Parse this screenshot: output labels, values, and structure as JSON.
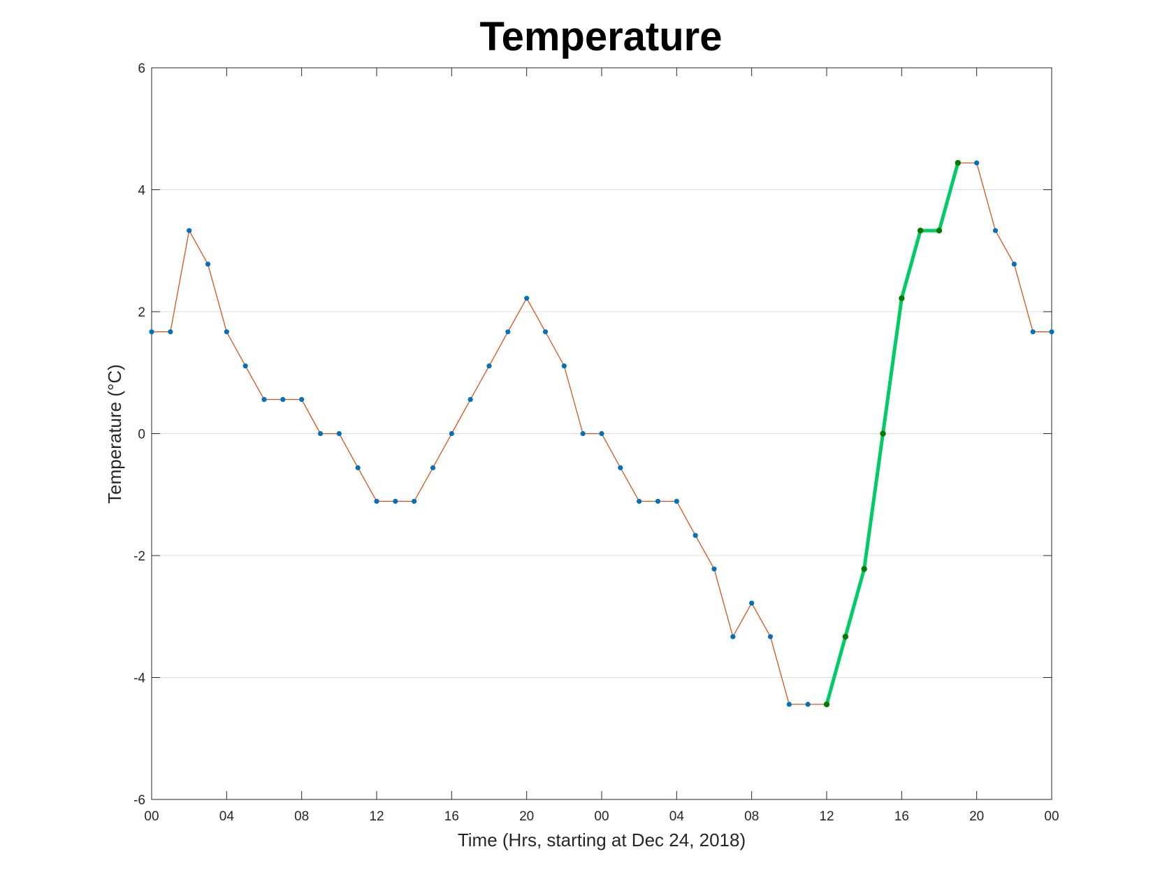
{
  "chart_data": {
    "type": "line",
    "title": "Temperature",
    "xlabel": "Time (Hrs, starting at Dec 24, 2018)",
    "ylabel": "Temperature (°C)",
    "ylim": [
      -6,
      6
    ],
    "yticks": [
      -6,
      -4,
      -2,
      0,
      2,
      4,
      6
    ],
    "xlim": [
      "2018-12-24 00:00",
      "2018-12-26 00:00"
    ],
    "xticks": [
      {
        "time": "2018-12-24 00:00",
        "label": "00"
      },
      {
        "time": "2018-12-24 04:00",
        "label": "04"
      },
      {
        "time": "2018-12-24 08:00",
        "label": "08"
      },
      {
        "time": "2018-12-24 12:00",
        "label": "12"
      },
      {
        "time": "2018-12-24 16:00",
        "label": "16"
      },
      {
        "time": "2018-12-24 20:00",
        "label": "20"
      },
      {
        "time": "2018-12-25 00:00",
        "label": "00"
      },
      {
        "time": "2018-12-25 04:00",
        "label": "04"
      },
      {
        "time": "2018-12-25 08:00",
        "label": "08"
      },
      {
        "time": "2018-12-25 12:00",
        "label": "12"
      },
      {
        "time": "2018-12-25 16:00",
        "label": "16"
      },
      {
        "time": "2018-12-25 20:00",
        "label": "20"
      },
      {
        "time": "2018-12-26 00:00",
        "label": "00"
      }
    ],
    "grid": "horizontal",
    "series": [
      {
        "color": "#d95319",
        "marker_color": "#0072bd",
        "x": [
          "2018-12-24 00:00",
          "2018-12-24 01:00",
          "2018-12-24 02:00",
          "2018-12-24 03:00",
          "2018-12-24 04:00",
          "2018-12-24 05:00",
          "2018-12-24 06:00",
          "2018-12-24 07:00",
          "2018-12-24 08:00",
          "2018-12-24 09:00",
          "2018-12-24 10:00",
          "2018-12-24 11:00",
          "2018-12-24 12:00",
          "2018-12-24 13:00",
          "2018-12-24 14:00",
          "2018-12-24 15:00",
          "2018-12-24 16:00",
          "2018-12-24 17:00",
          "2018-12-24 18:00",
          "2018-12-24 19:00",
          "2018-12-24 20:00",
          "2018-12-24 21:00",
          "2018-12-24 22:00",
          "2018-12-24 23:00",
          "2018-12-25 00:00",
          "2018-12-25 01:00",
          "2018-12-25 02:00",
          "2018-12-25 03:00",
          "2018-12-25 04:00",
          "2018-12-25 05:00",
          "2018-12-25 06:00",
          "2018-12-25 07:00",
          "2018-12-25 08:00",
          "2018-12-25 09:00",
          "2018-12-25 10:00",
          "2018-12-25 11:00",
          "2018-12-25 12:00",
          "2018-12-25 13:00",
          "2018-12-25 14:00",
          "2018-12-25 15:00",
          "2018-12-25 16:00",
          "2018-12-25 17:00",
          "2018-12-25 18:00",
          "2018-12-25 19:00",
          "2018-12-25 20:00",
          "2018-12-25 21:00",
          "2018-12-25 22:00",
          "2018-12-25 23:00",
          "2018-12-26 00:00"
        ],
        "y": [
          1.67,
          1.67,
          3.33,
          2.78,
          1.67,
          1.11,
          0.56,
          0.56,
          0.56,
          0,
          0,
          -0.56,
          -1.11,
          -1.11,
          -1.11,
          -0.56,
          0,
          0.56,
          1.11,
          1.67,
          2.22,
          1.67,
          1.11,
          0,
          0,
          -0.56,
          -1.11,
          -1.11,
          -1.11,
          -1.67,
          -2.22,
          -3.33,
          -2.78,
          -3.33,
          -4.44,
          -4.44,
          -4.44,
          -3.33,
          -2.22,
          0,
          2.22,
          3.33,
          3.33,
          4.44,
          4.44,
          3.33,
          2.78,
          1.67,
          1.67
        ]
      },
      {
        "color": "#00cc66",
        "marker_color": "#007a00",
        "x": [
          "2018-12-25 12:00",
          "2018-12-25 13:00",
          "2018-12-25 14:00",
          "2018-12-25 15:00",
          "2018-12-25 16:00",
          "2018-12-25 17:00",
          "2018-12-25 18:00",
          "2018-12-25 19:00"
        ],
        "y": [
          -4.44,
          -3.33,
          -2.22,
          0,
          2.22,
          3.33,
          3.33,
          4.44
        ]
      }
    ]
  }
}
